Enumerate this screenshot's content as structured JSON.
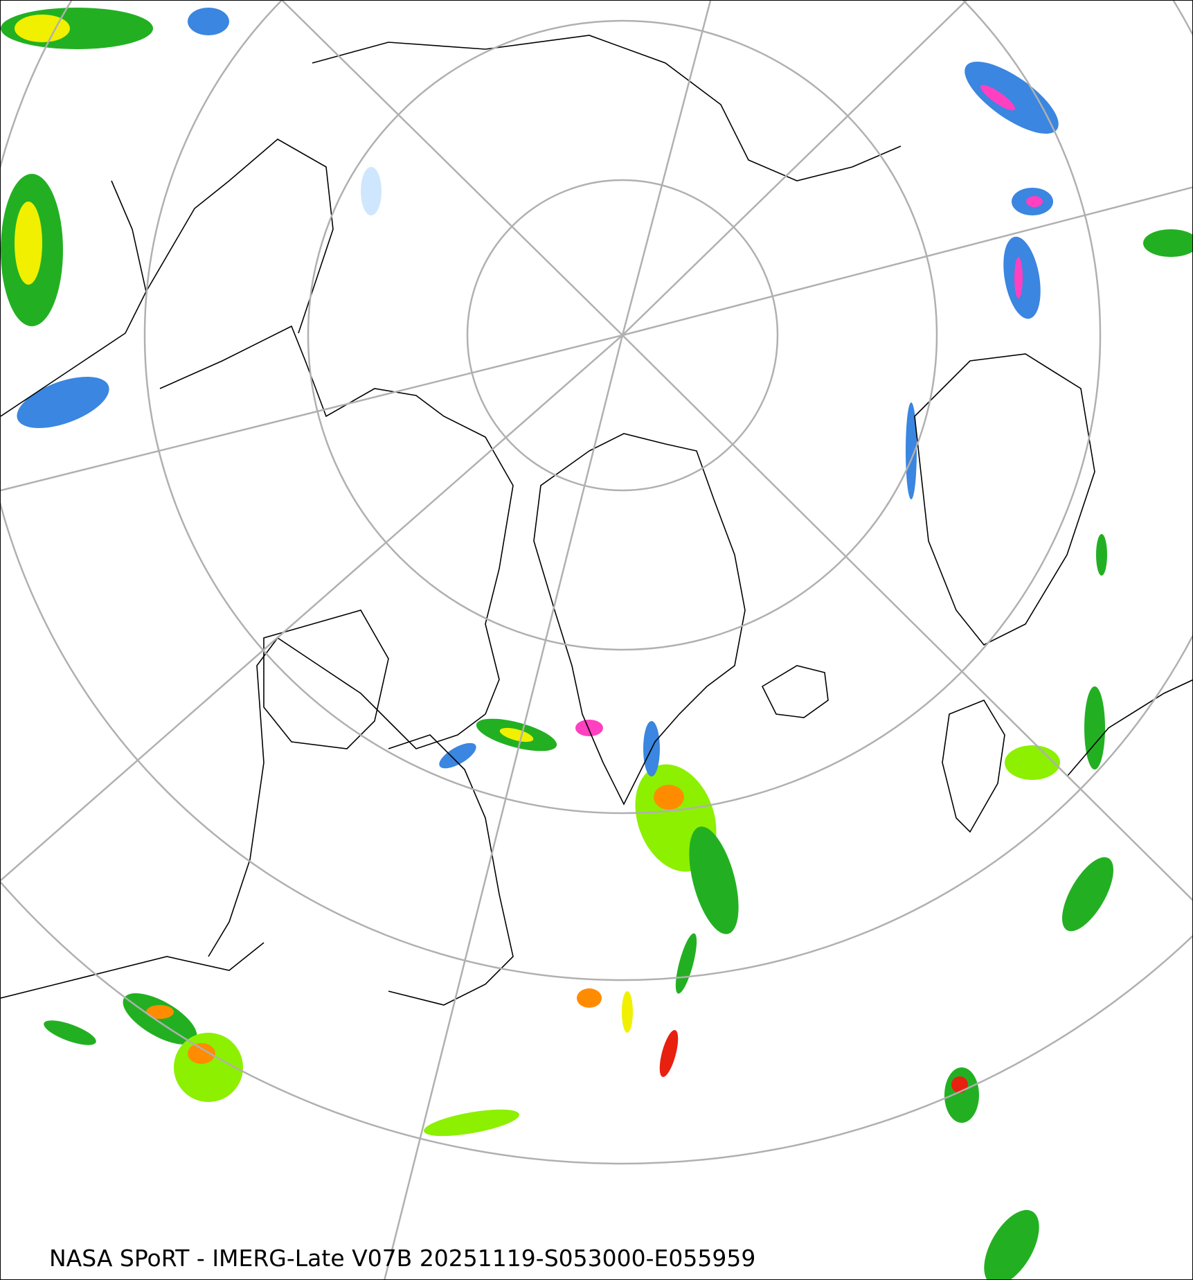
{
  "caption": "NASA SPoRT - IMERG-Late V07B 20251119-S053000-E055959",
  "colors": {
    "graticule": "#b0b0b0",
    "coastline": "#000000",
    "precip_light": "#cfe6ff",
    "precip_blue": "#3a86e0",
    "precip_darkblue": "#1060d0",
    "precip_green": "#22b022",
    "precip_lightgreen": "#8cf000",
    "precip_yellow": "#f0f000",
    "precip_orange": "#ff8c00",
    "precip_red": "#e82010",
    "precip_magenta": "#ff40c0"
  }
}
